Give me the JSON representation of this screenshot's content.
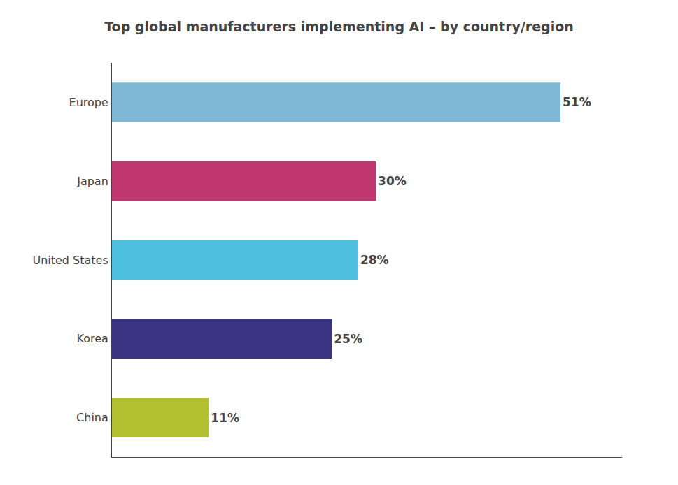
{
  "chart_data": {
    "type": "bar",
    "orientation": "horizontal",
    "title": "Top global manufacturers implementing AI – by country/region",
    "categories": [
      "Europe",
      "Japan",
      "United States",
      "Korea",
      "China"
    ],
    "values": [
      51,
      30,
      28,
      25,
      11
    ],
    "value_labels": [
      "51%",
      "30%",
      "28%",
      "25%",
      "11%"
    ],
    "colors": [
      "#7eb8d4",
      "#c0366e",
      "#4dc0e0",
      "#3a3582",
      "#b5c030"
    ],
    "xlim": [
      0,
      58
    ],
    "xticks": [],
    "grid": false,
    "data_labels": true,
    "tick_labels": "y"
  }
}
